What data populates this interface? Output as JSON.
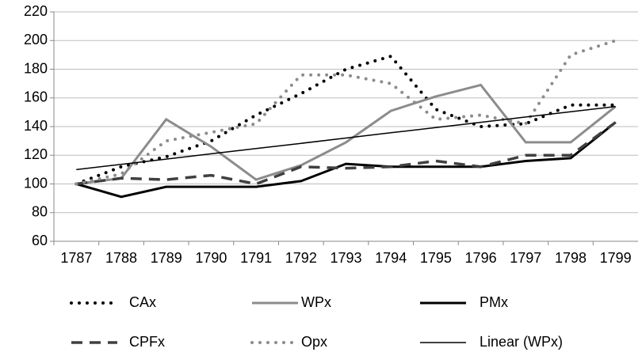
{
  "chart_data": {
    "type": "line",
    "categories": [
      "1787",
      "1788",
      "1789",
      "1790",
      "1791",
      "1792",
      "1793",
      "1794",
      "1795",
      "1796",
      "1797",
      "1798",
      "1799"
    ],
    "ylim": [
      60,
      220
    ],
    "yticks": [
      60,
      80,
      100,
      120,
      140,
      160,
      180,
      200,
      220
    ],
    "grid": true,
    "legend": "bottom",
    "series": [
      {
        "name": "CAx",
        "color": "#000000",
        "style": "dotted",
        "values": [
          100,
          112,
          119,
          130,
          148,
          163,
          180,
          189,
          152,
          140,
          142,
          155,
          155
        ]
      },
      {
        "name": "WPx",
        "color": "#8c8c8c",
        "style": "solid",
        "values": [
          100,
          104,
          145,
          126,
          103,
          113,
          129,
          151,
          161,
          169,
          129,
          129,
          154
        ]
      },
      {
        "name": "PMx",
        "color": "#000000",
        "style": "solid",
        "values": [
          100,
          91,
          98,
          98,
          98,
          102,
          114,
          112,
          112,
          112,
          116,
          118,
          143
        ]
      },
      {
        "name": "CPFx",
        "color": "#404040",
        "style": "dashed",
        "values": [
          100,
          104,
          103,
          106,
          100,
          112,
          111,
          112,
          116,
          112,
          120,
          120,
          143
        ]
      },
      {
        "name": "Opx",
        "color": "#8c8c8c",
        "style": "dotted",
        "values": [
          100,
          107,
          130,
          136,
          142,
          176,
          176,
          170,
          145,
          148,
          142,
          190,
          200
        ]
      },
      {
        "name": "Linear (WPx)",
        "color": "#000000",
        "style": "thin",
        "values": [
          110,
          113.7,
          117.3,
          121,
          124.7,
          128.3,
          132,
          135.7,
          139.3,
          143,
          146.7,
          150.3,
          154
        ]
      }
    ]
  }
}
